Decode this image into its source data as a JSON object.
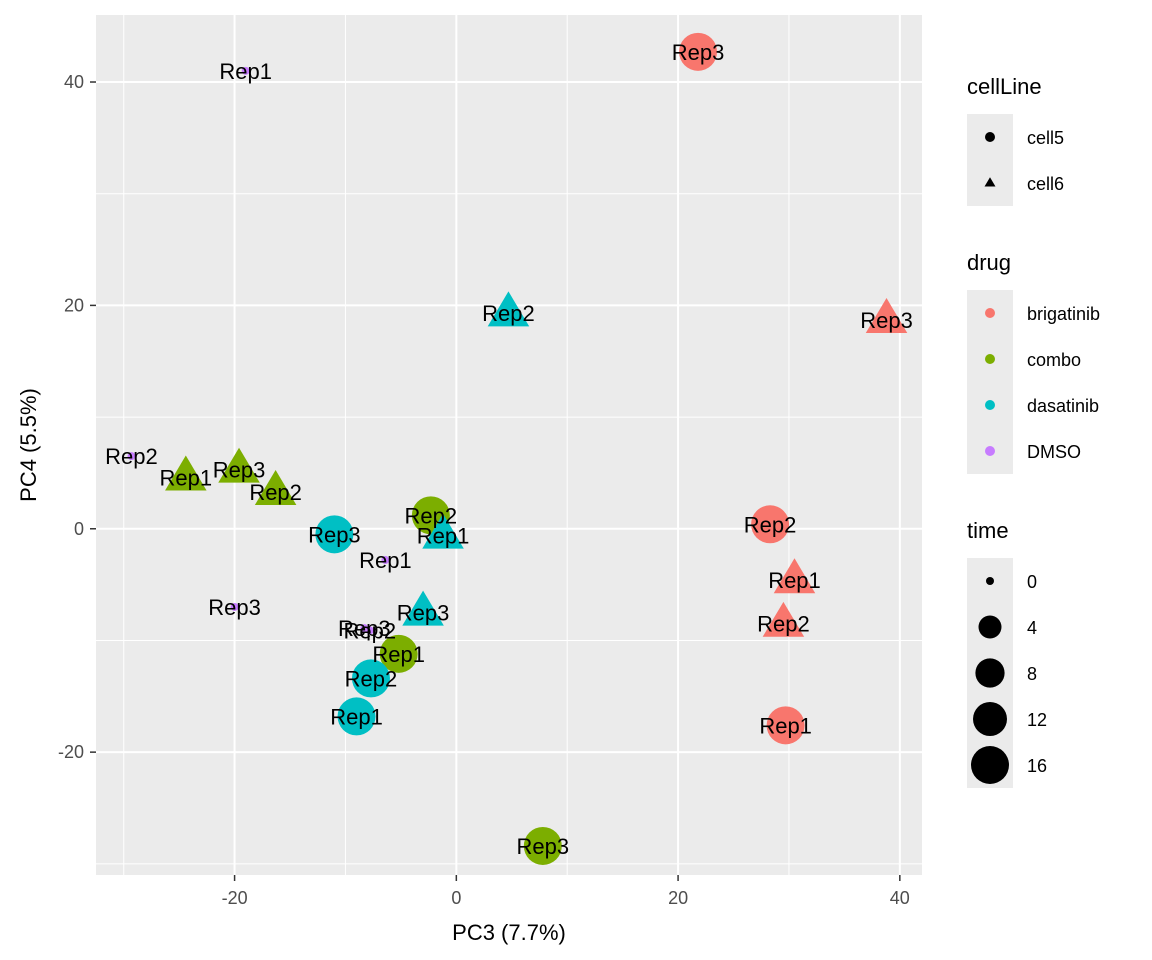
{
  "chart_data": {
    "type": "scatter",
    "xlabel": "PC3 (7.7%)",
    "ylabel": "PC4 (5.5%)",
    "xlim": [
      -32.5,
      42
    ],
    "ylim": [
      -31,
      46
    ],
    "x_ticks": [
      -20,
      0,
      20,
      40
    ],
    "x_tick_labels": [
      "-20",
      "0",
      "20",
      "40"
    ],
    "y_ticks": [
      -20,
      0,
      20,
      40
    ],
    "y_tick_labels": [
      "-20",
      "0",
      "20",
      "40"
    ],
    "grid": true,
    "legend_position": "right",
    "colors": {
      "brigatinib": "#F8766D",
      "combo": "#7CAE00",
      "dasatinib": "#00BFC4",
      "DMSO": "#C77CFF"
    },
    "legends": [
      {
        "title": "cellLine",
        "kind": "shape",
        "entries": [
          {
            "label": "cell5",
            "shape": "circle"
          },
          {
            "label": "cell6",
            "shape": "triangle"
          }
        ]
      },
      {
        "title": "drug",
        "kind": "color",
        "entries": [
          {
            "label": "brigatinib",
            "key": "brigatinib"
          },
          {
            "label": "combo",
            "key": "combo"
          },
          {
            "label": "dasatinib",
            "key": "dasatinib"
          },
          {
            "label": "DMSO",
            "key": "DMSO"
          }
        ]
      },
      {
        "title": "time",
        "kind": "size",
        "entries": [
          {
            "label": "0",
            "value": 0
          },
          {
            "label": "4",
            "value": 4
          },
          {
            "label": "8",
            "value": 8
          },
          {
            "label": "12",
            "value": 12
          },
          {
            "label": "16",
            "value": 16
          }
        ]
      }
    ],
    "points": [
      {
        "x": -19,
        "y": 41,
        "drug": "DMSO",
        "cellLine": "cell5",
        "time": 0,
        "label": "Rep1"
      },
      {
        "x": 21.8,
        "y": 42.7,
        "drug": "brigatinib",
        "cellLine": "cell5",
        "time": 16,
        "label": "Rep3"
      },
      {
        "x": 4.7,
        "y": 19.3,
        "drug": "dasatinib",
        "cellLine": "cell6",
        "time": 16,
        "label": "Rep2"
      },
      {
        "x": 38.8,
        "y": 18.7,
        "drug": "brigatinib",
        "cellLine": "cell6",
        "time": 16,
        "label": "Rep3"
      },
      {
        "x": -29.3,
        "y": 6.5,
        "drug": "DMSO",
        "cellLine": "cell5",
        "time": 0,
        "label": "Rep2"
      },
      {
        "x": -24.4,
        "y": 4.6,
        "drug": "combo",
        "cellLine": "cell6",
        "time": 16,
        "label": "Rep1"
      },
      {
        "x": -19.6,
        "y": 5.3,
        "drug": "combo",
        "cellLine": "cell6",
        "time": 16,
        "label": "Rep3"
      },
      {
        "x": -16.3,
        "y": 3.3,
        "drug": "combo",
        "cellLine": "cell6",
        "time": 16,
        "label": "Rep2"
      },
      {
        "x": -11,
        "y": -0.5,
        "drug": "dasatinib",
        "cellLine": "cell5",
        "time": 16,
        "label": "Rep3"
      },
      {
        "x": -2.3,
        "y": 1.2,
        "drug": "combo",
        "cellLine": "cell5",
        "time": 16,
        "label": "Rep2"
      },
      {
        "x": -1.2,
        "y": -0.6,
        "drug": "dasatinib",
        "cellLine": "cell6",
        "time": 16,
        "label": "Rep1"
      },
      {
        "x": -6.4,
        "y": -2.8,
        "drug": "DMSO",
        "cellLine": "cell5",
        "time": 0,
        "label": "Rep1"
      },
      {
        "x": 28.3,
        "y": 0.4,
        "drug": "brigatinib",
        "cellLine": "cell5",
        "time": 16,
        "label": "Rep2"
      },
      {
        "x": 30.5,
        "y": -4.6,
        "drug": "brigatinib",
        "cellLine": "cell6",
        "time": 16,
        "label": "Rep1"
      },
      {
        "x": 29.5,
        "y": -8.5,
        "drug": "brigatinib",
        "cellLine": "cell6",
        "time": 16,
        "label": "Rep2"
      },
      {
        "x": -20,
        "y": -7,
        "drug": "DMSO",
        "cellLine": "cell5",
        "time": 0,
        "label": "Rep3"
      },
      {
        "x": -3,
        "y": -7.5,
        "drug": "dasatinib",
        "cellLine": "cell6",
        "time": 16,
        "label": "Rep3"
      },
      {
        "x": -8.3,
        "y": -8.9,
        "drug": "DMSO",
        "cellLine": "cell5",
        "time": 0,
        "label": "Rep3"
      },
      {
        "x": -7.8,
        "y": -9.1,
        "drug": "DMSO",
        "cellLine": "cell5",
        "time": 0,
        "label": "Rep2"
      },
      {
        "x": -5.2,
        "y": -11.2,
        "drug": "combo",
        "cellLine": "cell5",
        "time": 16,
        "label": "Rep1"
      },
      {
        "x": -7.7,
        "y": -13.4,
        "drug": "dasatinib",
        "cellLine": "cell5",
        "time": 16,
        "label": "Rep2"
      },
      {
        "x": -9,
        "y": -16.8,
        "drug": "dasatinib",
        "cellLine": "cell5",
        "time": 16,
        "label": "Rep1"
      },
      {
        "x": 29.7,
        "y": -17.6,
        "drug": "brigatinib",
        "cellLine": "cell5",
        "time": 16,
        "label": "Rep1"
      },
      {
        "x": 7.8,
        "y": -28.4,
        "drug": "combo",
        "cellLine": "cell5",
        "time": 16,
        "label": "Rep3"
      }
    ]
  }
}
